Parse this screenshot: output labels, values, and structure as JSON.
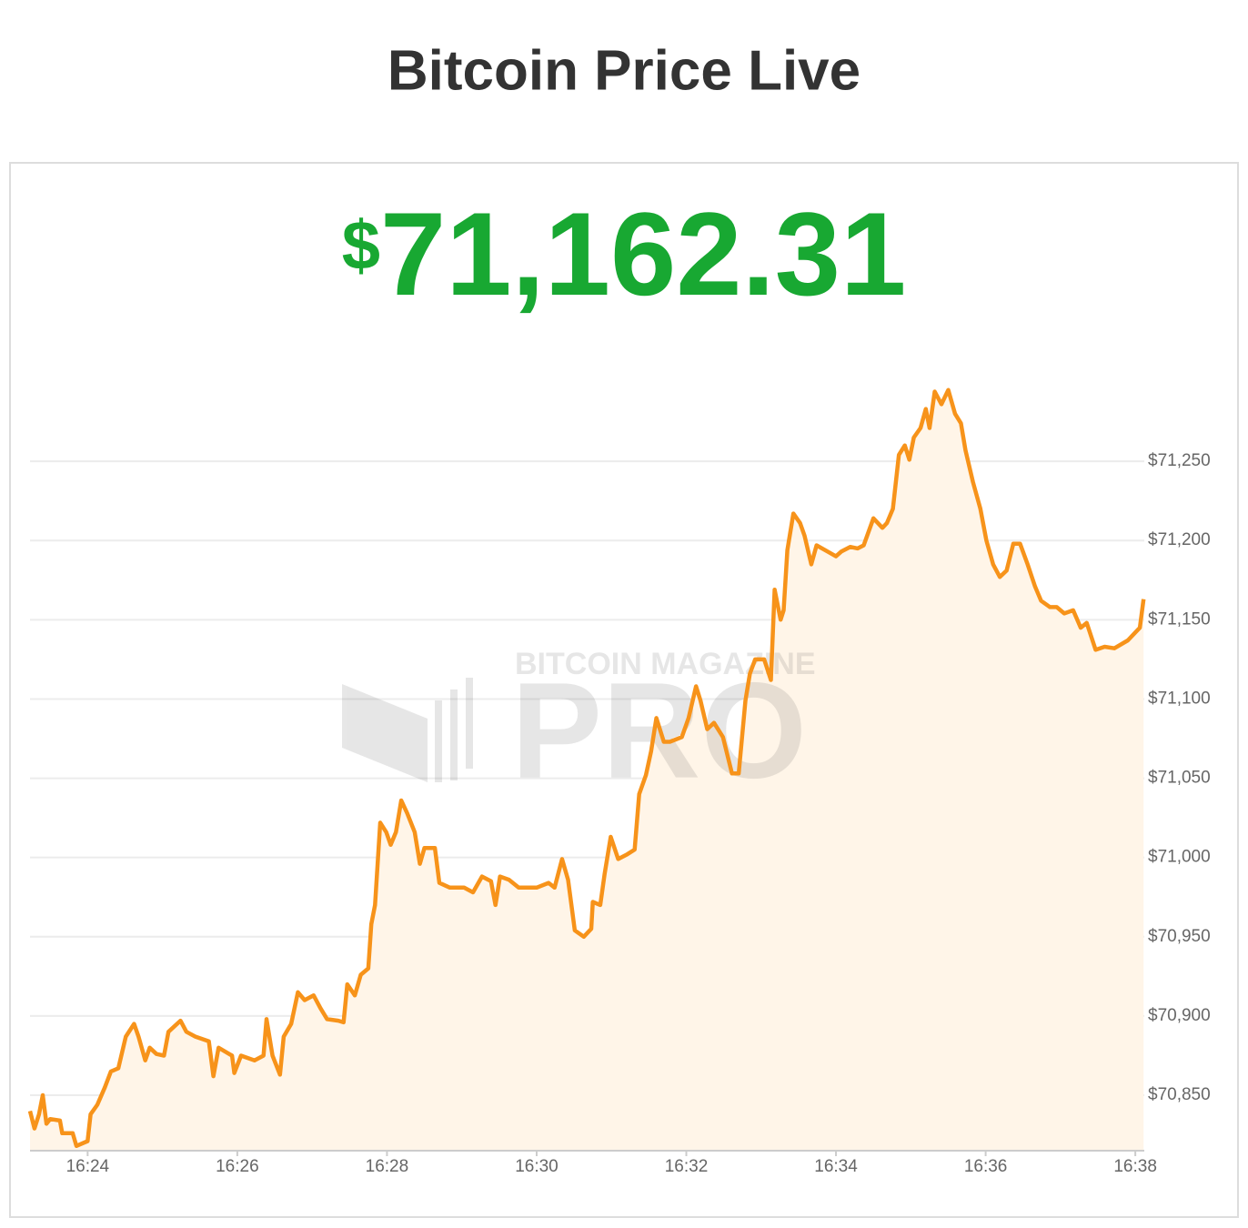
{
  "chart_data": {
    "type": "line",
    "title": "Bitcoin Price Live",
    "price_symbol": "$",
    "price": "71,162.31",
    "watermark": [
      "BITCOIN MAGAZINE",
      "PRO"
    ],
    "x": [
      983.23,
      983.29,
      983.35,
      983.4,
      983.45,
      983.5,
      983.63,
      983.66,
      983.8,
      983.85,
      984.0,
      984.04,
      984.13,
      984.23,
      984.31,
      984.41,
      984.51,
      984.62,
      984.68,
      984.77,
      984.83,
      984.92,
      985.02,
      985.08,
      985.24,
      985.32,
      985.44,
      985.62,
      985.68,
      985.75,
      985.93,
      985.96,
      986.05,
      986.23,
      986.35,
      986.39,
      986.47,
      986.57,
      986.62,
      986.72,
      986.81,
      986.9,
      987.02,
      987.11,
      987.2,
      987.35,
      987.42,
      987.47,
      987.57,
      987.65,
      987.75,
      987.79,
      987.84,
      987.91,
      987.99,
      988.05,
      988.12,
      988.19,
      988.27,
      988.37,
      988.44,
      988.5,
      988.64,
      988.7,
      988.84,
      989.03,
      989.15,
      989.27,
      989.39,
      989.45,
      989.51,
      989.63,
      989.76,
      990.0,
      990.16,
      990.24,
      990.34,
      990.42,
      990.51,
      990.63,
      990.73,
      990.75,
      990.85,
      990.91,
      990.99,
      991.09,
      991.21,
      991.31,
      991.37,
      991.46,
      991.53,
      991.6,
      991.7,
      991.78,
      991.94,
      992.03,
      992.13,
      992.19,
      992.28,
      992.37,
      992.49,
      992.61,
      992.7,
      992.79,
      992.85,
      992.92,
      993.04,
      993.13,
      993.18,
      993.26,
      993.3,
      993.35,
      993.43,
      993.52,
      993.58,
      993.67,
      993.74,
      993.89,
      994.0,
      994.07,
      994.19,
      994.29,
      994.37,
      994.5,
      994.62,
      994.68,
      994.76,
      994.84,
      994.92,
      994.98,
      995.04,
      995.13,
      995.2,
      995.25,
      995.32,
      995.41,
      995.5,
      995.59,
      995.67,
      995.73,
      995.83,
      995.93,
      996.01,
      996.1,
      996.19,
      996.28,
      996.37,
      996.46,
      996.56,
      996.66,
      996.74,
      996.86,
      996.95,
      997.05,
      997.17,
      997.27,
      997.35,
      997.47,
      997.59,
      997.72,
      997.9,
      998.0,
      998.06,
      998.11
    ],
    "series": [
      {
        "color": "#f7931a",
        "values": [
          70840,
          70829,
          70838,
          70850,
          70832,
          70835,
          70834,
          70826,
          70826,
          70818,
          70821,
          70838,
          70844,
          70855,
          70865,
          70867,
          70887,
          70895,
          70887,
          70872,
          70880,
          70876,
          70875,
          70890,
          70897,
          70890,
          70887,
          70884,
          70862,
          70880,
          70875,
          70864,
          70875,
          70872,
          70875,
          70898,
          70875,
          70863,
          70887,
          70895,
          70915,
          70910,
          70913,
          70905,
          70898,
          70897,
          70896,
          70920,
          70913,
          70926,
          70930,
          70958,
          70970,
          71022,
          71016,
          71008,
          71016,
          71036,
          71028,
          71016,
          70996,
          71006,
          71006,
          70984,
          70981,
          70981,
          70978,
          70988,
          70985,
          70970,
          70988,
          70986,
          70981,
          70981,
          70984,
          70981,
          70999,
          70986,
          70954,
          70950,
          70955,
          70972,
          70970,
          70990,
          71013,
          70999,
          71002,
          71005,
          71040,
          71052,
          71067,
          71088,
          71073,
          71073,
          71076,
          71088,
          71108,
          71099,
          71081,
          71085,
          71076,
          71053,
          71053,
          71099,
          71116,
          71125,
          71125,
          71112,
          71169,
          71150,
          71156,
          71194,
          71217,
          71211,
          71203,
          71185,
          71197,
          71193,
          71190,
          71193,
          71196,
          71195,
          71197,
          71214,
          71208,
          71211,
          71220,
          71254,
          71260,
          71251,
          71265,
          71271,
          71283,
          71271,
          71294,
          71286,
          71295,
          71280,
          71274,
          71257,
          71237,
          71220,
          71200,
          71185,
          71177,
          71181,
          71198,
          71198,
          71185,
          71171,
          71162,
          71158,
          71158,
          71154,
          71156,
          71145,
          71148,
          71131,
          71133,
          71132,
          71137,
          71142,
          71145,
          71163
        ]
      }
    ],
    "xlim": [
      983.23,
      998.12
    ],
    "xticks": [
      {
        "value": 984,
        "label": "16:24"
      },
      {
        "value": 986,
        "label": "16:26"
      },
      {
        "value": 988,
        "label": "16:28"
      },
      {
        "value": 990,
        "label": "16:30"
      },
      {
        "value": 992,
        "label": "16:32"
      },
      {
        "value": 994,
        "label": "16:34"
      },
      {
        "value": 996,
        "label": "16:36"
      },
      {
        "value": 998,
        "label": "16:38"
      }
    ],
    "ylim": [
      70815,
      71300
    ],
    "yticks": [
      {
        "value": 70850,
        "label": "$70,850"
      },
      {
        "value": 70900,
        "label": "$70,900"
      },
      {
        "value": 70950,
        "label": "$70,950"
      },
      {
        "value": 71000,
        "label": "$71,000"
      },
      {
        "value": 71050,
        "label": "$71,050"
      },
      {
        "value": 71100,
        "label": "$71,100"
      },
      {
        "value": 71150,
        "label": "$71,150"
      },
      {
        "value": 71200,
        "label": "$71,200"
      },
      {
        "value": 71250,
        "label": "$71,250"
      }
    ],
    "grid": true,
    "area_color": "#fff5e8",
    "price_color": "#18a832"
  }
}
